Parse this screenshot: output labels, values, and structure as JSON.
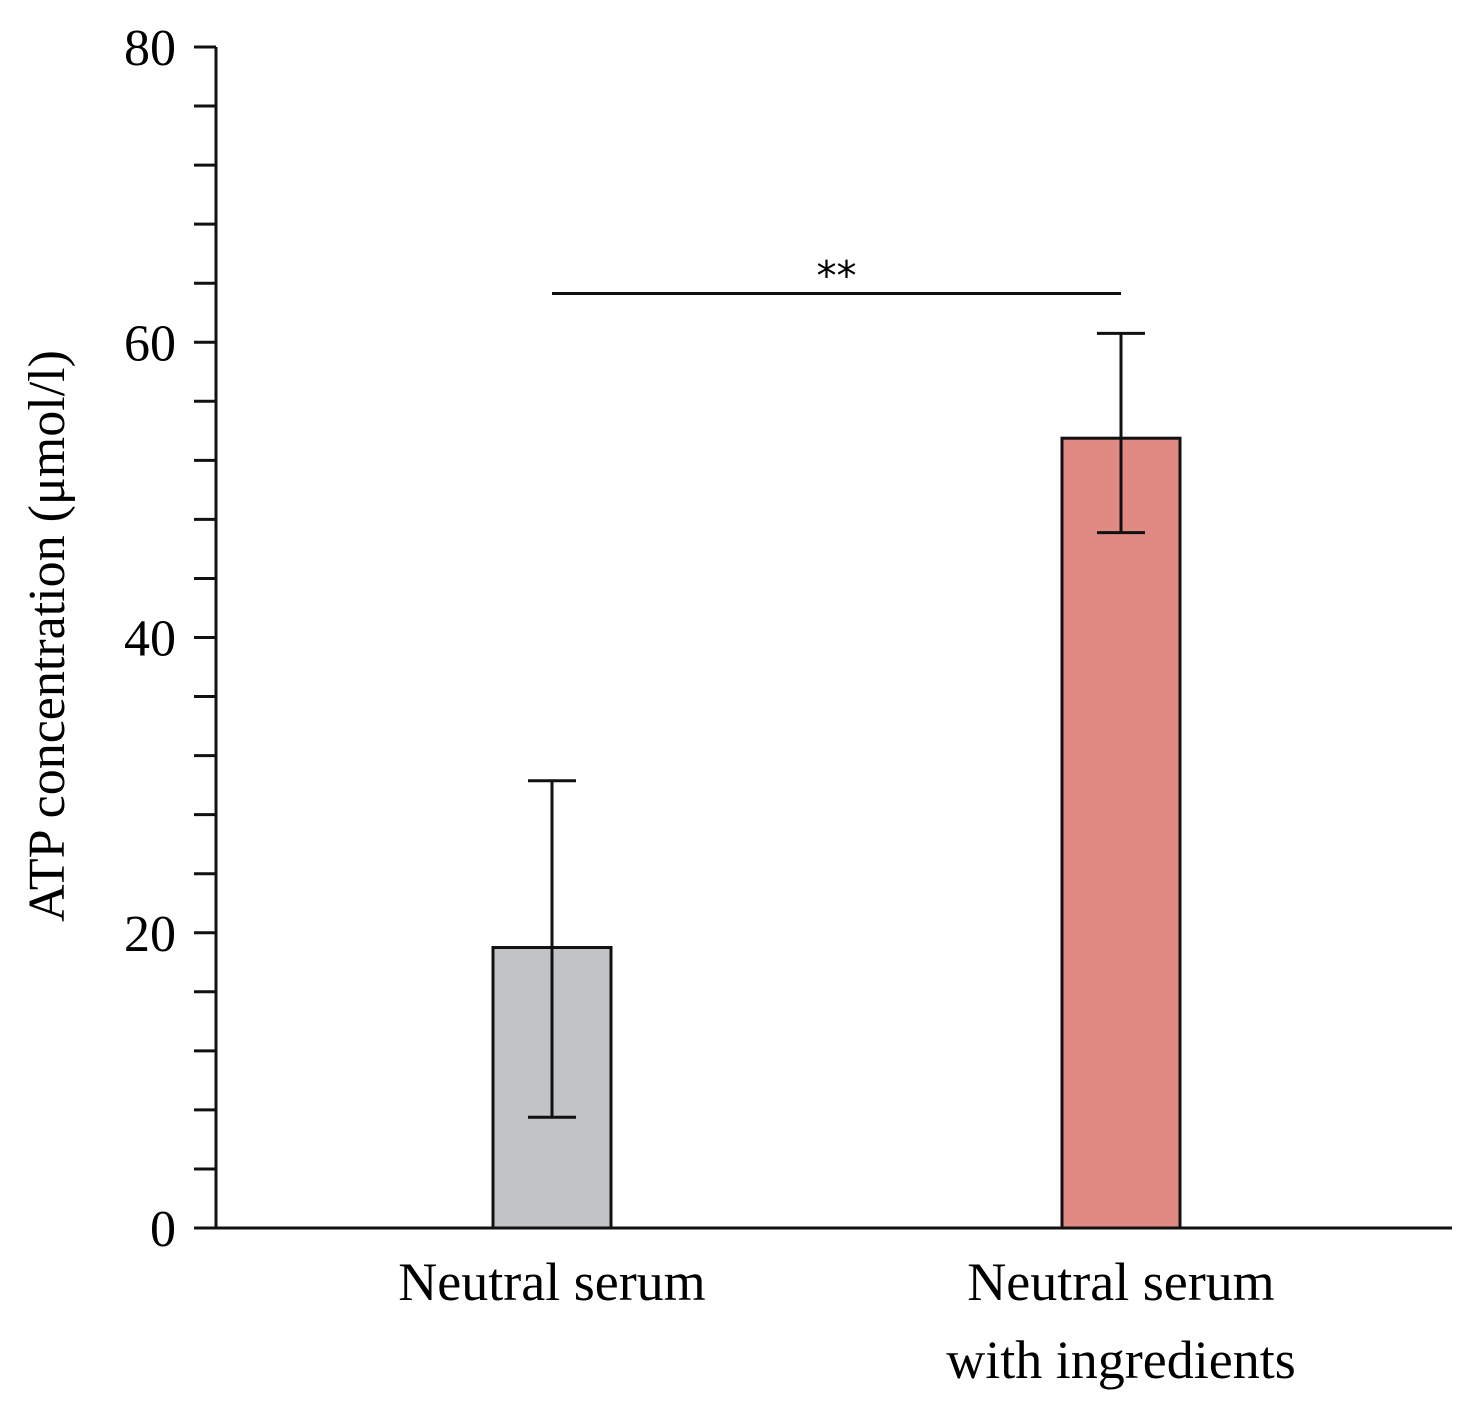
{
  "chart_data": {
    "type": "bar",
    "categories": [
      [
        "Neutral serum"
      ],
      [
        "Neutral serum",
        "with ingredients"
      ]
    ],
    "values": [
      19,
      53.5
    ],
    "errors": [
      [
        7.5,
        30.3
      ],
      [
        47.1,
        60.6
      ]
    ],
    "colors": [
      "#c2c3c5",
      "#e08a83"
    ],
    "ylabel": "ATP concentration (μmol/l)",
    "xlabel": "",
    "ylim": [
      0,
      80
    ],
    "yticks": [
      0,
      20,
      40,
      60,
      80
    ],
    "minor_step": 4,
    "significance": {
      "from": 0,
      "to": 1,
      "y": 63.3,
      "label": "**"
    },
    "grid": false
  }
}
